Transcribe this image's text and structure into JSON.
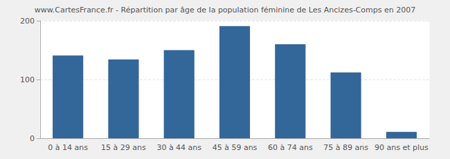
{
  "chart_data": {
    "type": "bar",
    "title": "www.CartesFrance.fr - Répartition par âge de la population féminine de Les Ancizes-Comps en 2007",
    "categories": [
      "0 à 14 ans",
      "15 à 29 ans",
      "30 à 44 ans",
      "45 à 59 ans",
      "60 à 74 ans",
      "75 à 89 ans",
      "90 ans et plus"
    ],
    "values": [
      141,
      134,
      150,
      191,
      160,
      112,
      11
    ],
    "color": "#336699",
    "ylim": [
      0,
      200
    ],
    "yticks": [
      0,
      100,
      200
    ],
    "grid": true
  }
}
